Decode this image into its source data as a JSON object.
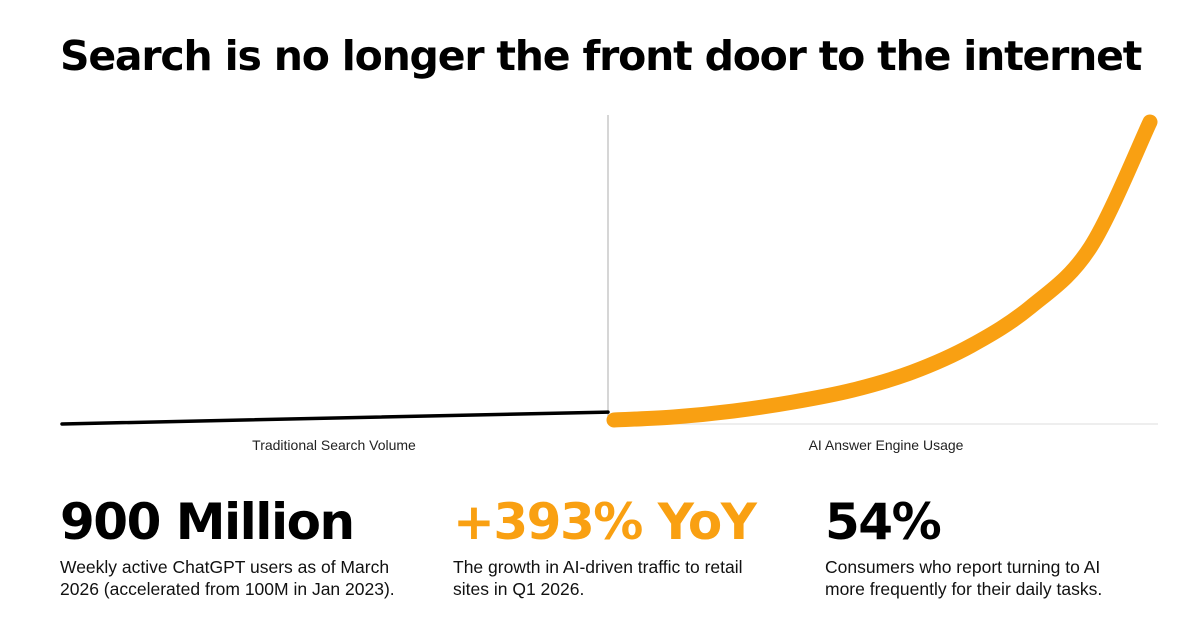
{
  "title": "Search is no longer the front door to the internet",
  "colors": {
    "accent": "#f9a012",
    "text": "#000000",
    "axis": "#bbbbbb"
  },
  "chart_data": [
    {
      "type": "line",
      "xlabel": "Traditional Search Volume",
      "series": [
        {
          "values": [
            0.0,
            0.04
          ]
        }
      ]
    },
    {
      "type": "line",
      "xlabel": "AI Answer Engine Usage",
      "series": [
        {
          "values": [
            0.0,
            0.01,
            0.03,
            0.06,
            0.1,
            0.16,
            0.25,
            0.38,
            0.58,
            1.0
          ]
        }
      ]
    }
  ],
  "stats": [
    {
      "value": "900 Million",
      "description": "Weekly active ChatGPT users as of March 2026 (accelerated from 100M in Jan 2023)."
    },
    {
      "value": "+393% YoY",
      "description": "The growth in AI-driven traffic to retail sites in Q1 2026."
    },
    {
      "value": "54%",
      "description": "Consumers who report turning to AI more frequently for their daily tasks."
    }
  ]
}
